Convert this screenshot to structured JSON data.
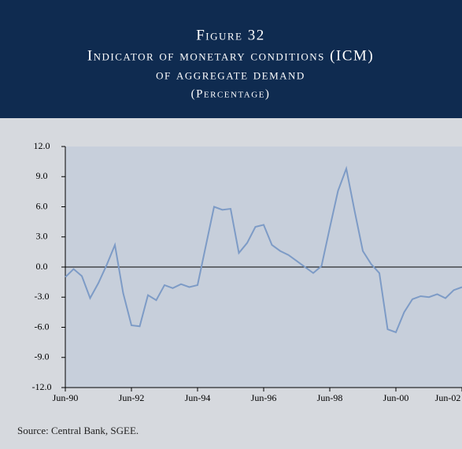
{
  "chart_data": {
    "type": "line",
    "title": [
      "Figure 32",
      "Indicator of monetary conditions (ICM)",
      "of aggregate demand"
    ],
    "subtitle": "(Percentage)",
    "source": "Source: Central Bank, SGEE.",
    "categories": [
      "Jun-90",
      null,
      null,
      null,
      null,
      null,
      null,
      null,
      "Jun-92",
      null,
      null,
      null,
      null,
      null,
      null,
      null,
      "Jun-94",
      null,
      null,
      null,
      null,
      null,
      null,
      null,
      "Jun-96",
      null,
      null,
      null,
      null,
      null,
      null,
      null,
      "Jun-98",
      null,
      null,
      null,
      null,
      null,
      null,
      null,
      "Jun-00",
      null,
      null,
      null,
      null,
      null,
      null,
      null,
      "Jun-02"
    ],
    "values": [
      -1.0,
      -0.2,
      -0.9,
      -3.1,
      -1.6,
      0.2,
      2.2,
      -2.6,
      -5.8,
      -5.9,
      -2.8,
      -3.3,
      -1.8,
      -2.1,
      -1.7,
      -2.0,
      -1.8,
      2.1,
      6.0,
      5.7,
      5.8,
      1.4,
      2.4,
      4.0,
      4.2,
      2.2,
      1.6,
      1.2,
      0.6,
      0.0,
      -0.6,
      0.1,
      3.9,
      7.6,
      9.8,
      5.6,
      1.6,
      0.3,
      -0.6,
      -6.2,
      -6.5,
      -4.5,
      -3.2,
      -2.9,
      -3.0,
      -2.7,
      -3.1,
      -2.3,
      -2.0
    ],
    "color": "#7d9bc6",
    "ylim": [
      -12,
      12
    ],
    "yticks": [
      {
        "value": -12,
        "label": "-12.0"
      },
      {
        "value": -9,
        "label": "-9.0"
      },
      {
        "value": -6,
        "label": "-6.0"
      },
      {
        "value": -3,
        "label": "-3.0"
      },
      {
        "value": 0,
        "label": "0.0"
      },
      {
        "value": 3,
        "label": "3.0"
      },
      {
        "value": 6,
        "label": "6.0"
      },
      {
        "value": 9,
        "label": "9.0"
      },
      {
        "value": 12,
        "label": "12.0"
      }
    ]
  }
}
